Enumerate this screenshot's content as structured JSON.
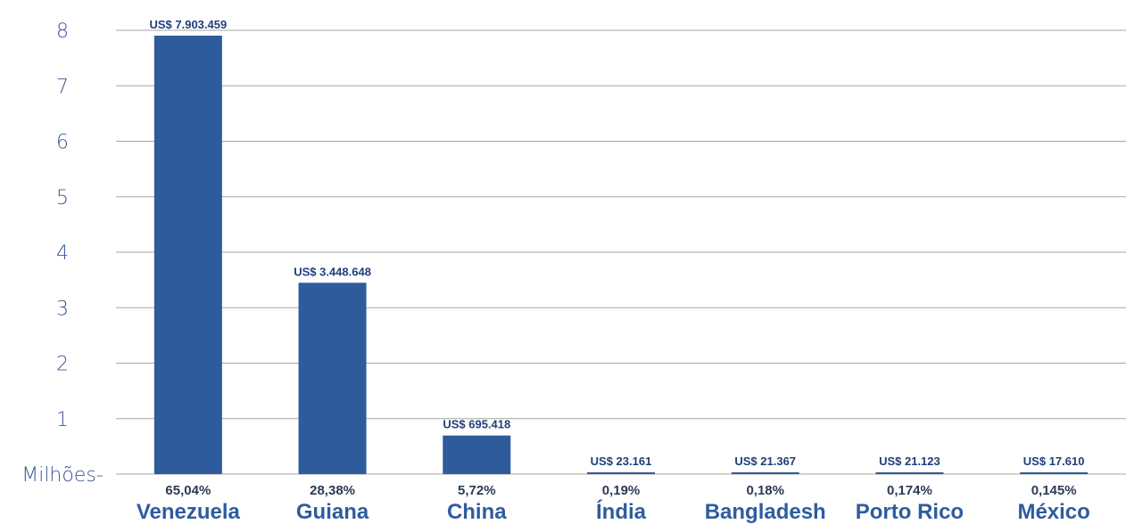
{
  "chart_data": {
    "type": "bar",
    "categories": [
      "Venezuela",
      "Guiana",
      "China",
      "Índia",
      "Bangladesh",
      "Porto Rico",
      "México"
    ],
    "values": [
      7903459,
      3448648,
      695418,
      23161,
      21367,
      21123,
      17610
    ],
    "value_labels": [
      "US$ 7.903.459",
      "US$ 3.448.648",
      "US$ 695.418",
      "US$ 23.161",
      "US$ 21.367",
      "US$ 21.123",
      "US$ 17.610"
    ],
    "percent_labels": [
      "65,04%",
      "28,38%",
      "5,72%",
      "0,19%",
      "0,18%",
      "0,174%",
      "0,145%"
    ],
    "y_tick_labels": [
      "Milhões-",
      "1",
      "2",
      "3",
      "4",
      "5",
      "6",
      "7",
      "8"
    ],
    "y_tick_values": [
      0,
      1000000,
      2000000,
      3000000,
      4000000,
      5000000,
      6000000,
      7000000,
      8000000
    ],
    "ylim": [
      0,
      8000000
    ],
    "grid": true,
    "bar_color": "#2e5b9c"
  }
}
